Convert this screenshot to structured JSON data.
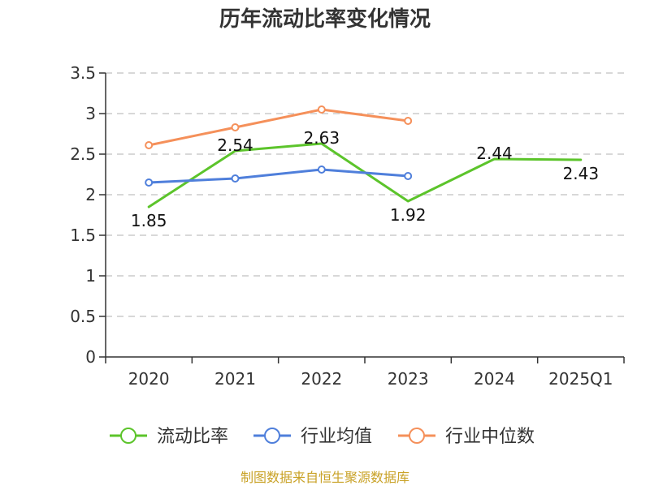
{
  "chart_data": {
    "type": "line",
    "title": "历年流动比率变化情况",
    "categories": [
      "2020",
      "2021",
      "2022",
      "2023",
      "2024",
      "2025Q1"
    ],
    "ylim": [
      0,
      3.5
    ],
    "yticks": [
      "0",
      "0.5",
      "1",
      "1.5",
      "2",
      "2.5",
      "3",
      "3.5"
    ],
    "ytick_values": [
      0,
      0.5,
      1,
      1.5,
      2,
      2.5,
      3,
      3.5
    ],
    "grid": true,
    "legend_position": "bottom",
    "series": [
      {
        "name": "流动比率",
        "color": "#5cc42b",
        "values": [
          1.85,
          2.54,
          2.63,
          1.92,
          2.44,
          2.43
        ],
        "labels": [
          "1.85",
          "2.54",
          "2.63",
          "1.92",
          "2.44",
          "2.43"
        ],
        "show_markers": false,
        "show_labels": true
      },
      {
        "name": "行业均值",
        "color": "#4f7fdb",
        "values": [
          2.15,
          2.2,
          2.31,
          2.23,
          null,
          null
        ],
        "show_markers": true,
        "show_labels": false
      },
      {
        "name": "行业中位数",
        "color": "#f5905a",
        "values": [
          2.61,
          2.83,
          3.05,
          2.91,
          null,
          null
        ],
        "show_markers": true,
        "show_labels": false
      }
    ]
  },
  "footer": {
    "source": "制图数据来自恒生聚源数据库",
    "color": "#c9a227"
  },
  "colors": {
    "axis": "#333333",
    "grid": "#cccccc",
    "text": "#333333"
  }
}
